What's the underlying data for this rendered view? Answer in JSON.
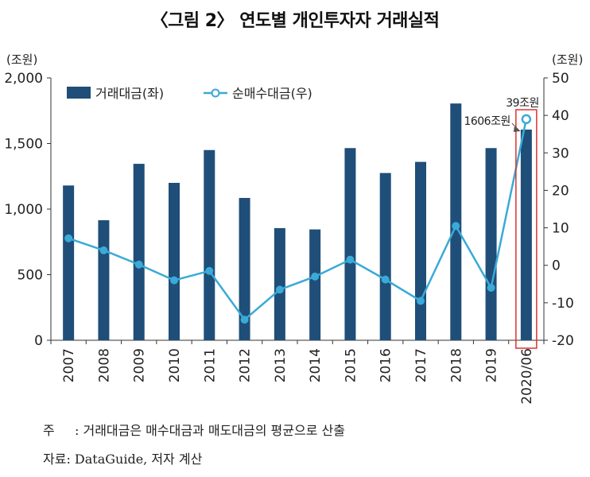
{
  "title": "〈그림 2〉 연도별 개인투자자 거래실적",
  "note": {
    "label": "주",
    "text": ": 거래대금은 매수대금과 매도대금의 평균으로 산출"
  },
  "source": "자료: DataGuide, 저자 계산",
  "chart_data": {
    "type": "bar+line",
    "categories": [
      "2007",
      "2008",
      "2009",
      "2010",
      "2011",
      "2012",
      "2013",
      "2014",
      "2015",
      "2016",
      "2017",
      "2018",
      "2019",
      "2020/06"
    ],
    "y_left": {
      "unit": "(조원)",
      "range": [
        0,
        2000
      ],
      "ticks": [
        "0",
        "500",
        "1,000",
        "1,500",
        "2,000"
      ]
    },
    "y_right": {
      "unit": "(조원)",
      "range": [
        -20,
        50
      ],
      "ticks": [
        "-20",
        "-10",
        "0",
        "10",
        "20",
        "30",
        "40",
        "50"
      ]
    },
    "series": [
      {
        "name": "거래대금(좌)",
        "kind": "bar",
        "axis": "left",
        "color": "#1f4e79",
        "values": [
          1180,
          915,
          1345,
          1200,
          1450,
          1085,
          855,
          845,
          1465,
          1275,
          1360,
          1805,
          1465,
          1606
        ]
      },
      {
        "name": "순매수대금(우)",
        "kind": "line",
        "axis": "right",
        "color": "#3aaad6",
        "values": [
          7.2,
          4.0,
          0.2,
          -4.0,
          -1.5,
          -14.5,
          -6.5,
          -3.0,
          1.5,
          -3.8,
          -9.5,
          10.5,
          -6.0,
          39
        ]
      }
    ],
    "annotations": [
      {
        "text": "39조원",
        "series": "순매수대금(우)",
        "category": "2020/06"
      },
      {
        "text": "1606조원",
        "series": "거래대금(좌)",
        "category": "2020/06"
      }
    ],
    "highlight_category": "2020/06",
    "highlight_color": "#e03030",
    "legend_position": "top-left",
    "grid": false
  }
}
